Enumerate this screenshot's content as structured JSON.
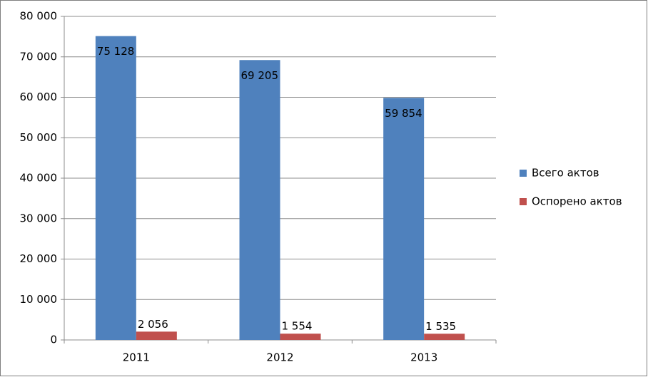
{
  "chart_data": {
    "type": "bar",
    "categories": [
      "2011",
      "2012",
      "2013"
    ],
    "series": [
      {
        "name": "Всего актов",
        "color": "#4f81bd",
        "values": [
          75128,
          69205,
          59854
        ],
        "value_labels": [
          "75 128",
          "69 205",
          "59 854"
        ]
      },
      {
        "name": "Оспорено актов",
        "color": "#c0504d",
        "values": [
          2056,
          1554,
          1535
        ],
        "value_labels": [
          "2 056",
          "1 554",
          "1 535"
        ]
      }
    ],
    "ylim": [
      0,
      80000
    ],
    "yticks": [
      0,
      {
        "value": 10000,
        "label": "10 000"
      },
      {
        "value": 20000,
        "label": "20 000"
      },
      {
        "value": 30000,
        "label": "30 000"
      },
      {
        "value": 40000,
        "label": "40 000"
      },
      {
        "value": 50000,
        "label": "50 000"
      },
      {
        "value": 60000,
        "label": "60 000"
      },
      {
        "value": 70000,
        "label": "70 000"
      },
      {
        "value": 80000,
        "label": "80 000"
      }
    ],
    "grid": true,
    "legend": "right"
  }
}
